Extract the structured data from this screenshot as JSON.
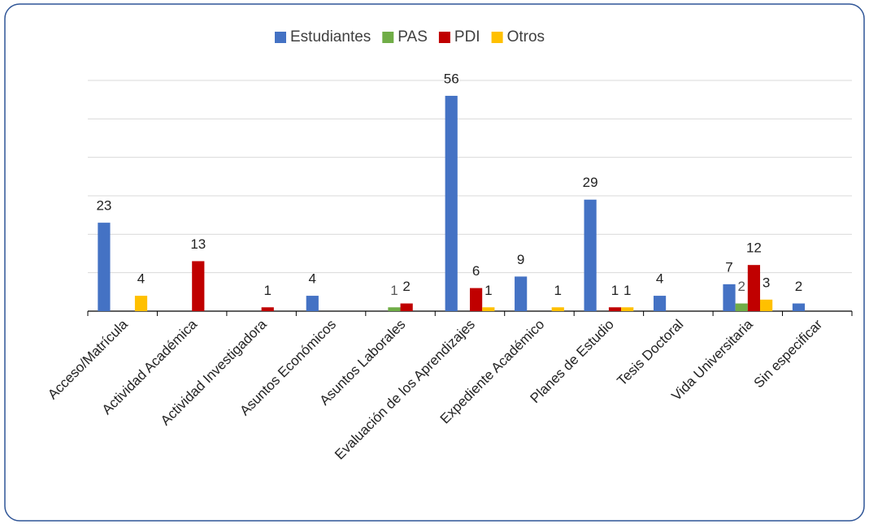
{
  "chart_data": {
    "type": "bar",
    "categories": [
      "Acceso/Matrícula",
      "Actividad Académica",
      "Actividad Investigadora",
      "Asuntos Económicos",
      "Asuntos Laborales",
      "Evaluación de los Aprendizajes",
      "Expediente Académico",
      "Planes de Estudio",
      "Tesis Doctoral",
      "Vida Universitaria",
      "Sin especificar"
    ],
    "series": [
      {
        "name": "Estudiantes",
        "color": "#4472c4",
        "values": [
          23,
          null,
          null,
          4,
          null,
          56,
          9,
          29,
          4,
          7,
          2
        ]
      },
      {
        "name": "PAS",
        "color": "#70ad47",
        "values": [
          null,
          null,
          null,
          null,
          1,
          null,
          null,
          null,
          null,
          2,
          null
        ]
      },
      {
        "name": "PDI",
        "color": "#c00000",
        "values": [
          null,
          13,
          1,
          null,
          2,
          6,
          null,
          1,
          null,
          12,
          null
        ]
      },
      {
        "name": "Otros",
        "color": "#ffc000",
        "values": [
          4,
          null,
          null,
          null,
          null,
          1,
          1,
          1,
          null,
          3,
          null
        ]
      }
    ],
    "ylim": [
      0,
      60
    ],
    "yticks": [
      0,
      10,
      20,
      30,
      40,
      50,
      60
    ],
    "grid": true,
    "legend": "top"
  }
}
